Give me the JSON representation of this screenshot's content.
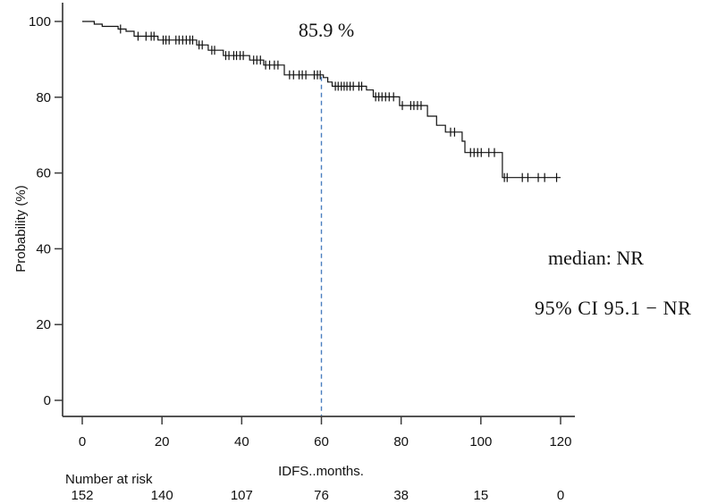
{
  "figure": {
    "background_color": "#ffffff",
    "axis_color": "#3c3c3c",
    "text_color": "#111111"
  },
  "chart_data": {
    "type": "line",
    "subtype": "kaplan_meier_step",
    "title": "",
    "xlabel": "IDFS..months.",
    "ylabel": "Probability (%)",
    "xlim": [
      0,
      120
    ],
    "ylim": [
      0,
      100
    ],
    "xticks": [
      0,
      20,
      40,
      60,
      80,
      100,
      120
    ],
    "yticks": [
      0,
      20,
      40,
      60,
      80,
      100
    ],
    "grid": false,
    "legend": "none",
    "annotation": {
      "x": 60,
      "y": 85.9,
      "text": "85.9 %"
    },
    "stats": {
      "median_line": "median: NR",
      "ci_line": "95% CI 95.1 − NR"
    },
    "dashed_marker": {
      "x": 60,
      "y_top": 85.9,
      "color": "#4a7ebf",
      "style": "dashed"
    },
    "series": [
      {
        "name": "IDFS",
        "color": "#111111",
        "steps": [
          [
            0,
            100
          ],
          [
            3,
            99.3
          ],
          [
            5,
            98.7
          ],
          [
            9,
            98.0
          ],
          [
            11,
            97.4
          ],
          [
            13,
            96.1
          ],
          [
            19,
            95.1
          ],
          [
            28.7,
            93.8
          ],
          [
            31.6,
            92.4
          ],
          [
            35.4,
            91.0
          ],
          [
            42,
            89.8
          ],
          [
            45.5,
            88.5
          ],
          [
            50.7,
            85.9
          ],
          [
            60.5,
            85.2
          ],
          [
            61.6,
            84.0
          ],
          [
            62.7,
            82.9
          ],
          [
            71.3,
            81.9
          ],
          [
            73,
            80.1
          ],
          [
            79.6,
            77.8
          ],
          [
            86.6,
            75.0
          ],
          [
            88.9,
            72.6
          ],
          [
            91.1,
            70.8
          ],
          [
            95.3,
            68.4
          ],
          [
            96,
            65.4
          ],
          [
            105.4,
            58.8
          ],
          [
            120,
            58.8
          ]
        ],
        "censor_times": [
          9.6,
          14,
          16,
          17.3,
          18,
          20.3,
          21,
          21.8,
          23.5,
          24.3,
          25.2,
          26.1,
          27,
          27.7,
          29.3,
          30.1,
          32.5,
          33.2,
          36,
          36.8,
          38,
          38.7,
          39.6,
          40.4,
          43,
          43.8,
          44.7,
          46,
          47,
          48.2,
          49.1,
          52,
          53,
          54.4,
          55.2,
          56.1,
          58.2,
          59,
          59.7,
          63.5,
          64.2,
          65,
          65.7,
          66.4,
          67.2,
          68,
          69.4,
          70.1,
          73.6,
          74.4,
          75.2,
          76.1,
          77,
          78.1,
          80.3,
          82.4,
          83.2,
          84.1,
          85,
          92.4,
          93.4,
          97.4,
          98.3,
          99.2,
          100.1,
          102,
          103.4,
          105.9,
          106.6,
          110.4,
          111.8,
          114.4,
          116,
          119
        ]
      }
    ],
    "number_at_risk": {
      "label": "Number at risk",
      "times": [
        0,
        20,
        40,
        60,
        80,
        100,
        120
      ],
      "counts": [
        152,
        140,
        107,
        76,
        38,
        15,
        0
      ]
    }
  }
}
